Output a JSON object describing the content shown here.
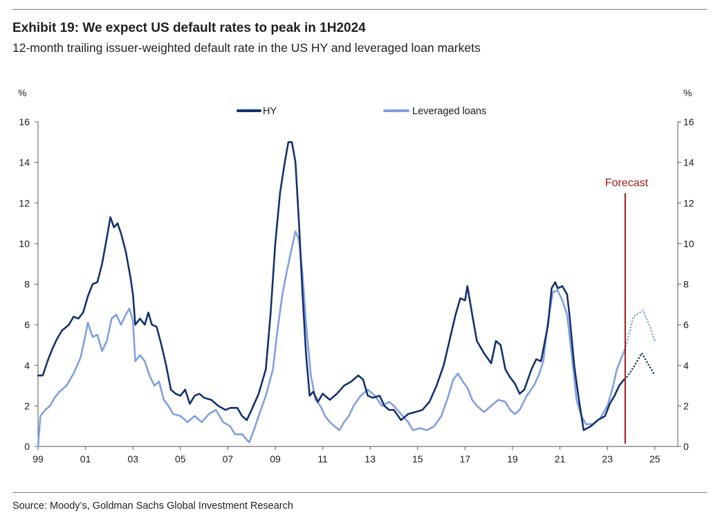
{
  "header": {
    "title": "Exhibit 19: We expect US default rates to peak in 1H2024",
    "subtitle": "12-month trailing issuer-weighted default rate in the US HY and leveraged loan markets"
  },
  "footer": {
    "source": "Source: Moody’s, Goldman Sachs Global Investment Research"
  },
  "chart_data": {
    "type": "line",
    "title": "Exhibit 19: We expect US default rates to peak in 1H2024",
    "subtitle": "12-month trailing issuer-weighted default rate in the US HY and leveraged loan markets",
    "ylabel_left": "%",
    "ylabel_right": "%",
    "ylim": [
      0,
      16
    ],
    "xlim": [
      1999,
      2026
    ],
    "yticks": [
      "0",
      "2",
      "4",
      "6",
      "8",
      "10",
      "12",
      "14",
      "16"
    ],
    "xticks": [
      "99",
      "01",
      "03",
      "05",
      "07",
      "09",
      "11",
      "13",
      "15",
      "17",
      "19",
      "21",
      "23",
      "25"
    ],
    "legend_position": "top-center",
    "annotation": {
      "label": "Forecast",
      "x": 2023.75,
      "color": "#a01818"
    },
    "colors": {
      "hy": "#13306e",
      "loans": "#7f9fe0",
      "forecast": "#a01818"
    },
    "series": [
      {
        "name": "HY",
        "color": "#13306e",
        "points": [
          [
            1999.0,
            3.5
          ],
          [
            1999.2,
            3.5
          ],
          [
            1999.4,
            4.2
          ],
          [
            1999.6,
            4.8
          ],
          [
            1999.8,
            5.3
          ],
          [
            2000.0,
            5.7
          ],
          [
            2000.3,
            6.0
          ],
          [
            2000.5,
            6.4
          ],
          [
            2000.7,
            6.3
          ],
          [
            2000.9,
            6.6
          ],
          [
            2001.1,
            7.4
          ],
          [
            2001.3,
            8.0
          ],
          [
            2001.5,
            8.1
          ],
          [
            2001.7,
            9.0
          ],
          [
            2001.9,
            10.3
          ],
          [
            2002.05,
            11.3
          ],
          [
            2002.2,
            10.8
          ],
          [
            2002.35,
            11.0
          ],
          [
            2002.5,
            10.5
          ],
          [
            2002.7,
            9.6
          ],
          [
            2002.9,
            8.3
          ],
          [
            2003.0,
            7.5
          ],
          [
            2003.1,
            6.0
          ],
          [
            2003.3,
            6.3
          ],
          [
            2003.5,
            6.0
          ],
          [
            2003.65,
            6.6
          ],
          [
            2003.8,
            6.0
          ],
          [
            2004.0,
            5.9
          ],
          [
            2004.2,
            5.0
          ],
          [
            2004.4,
            4.0
          ],
          [
            2004.6,
            2.8
          ],
          [
            2004.8,
            2.6
          ],
          [
            2005.0,
            2.5
          ],
          [
            2005.2,
            2.8
          ],
          [
            2005.4,
            2.1
          ],
          [
            2005.6,
            2.5
          ],
          [
            2005.8,
            2.6
          ],
          [
            2006.0,
            2.4
          ],
          [
            2006.3,
            2.3
          ],
          [
            2006.6,
            2.0
          ],
          [
            2006.9,
            1.8
          ],
          [
            2007.1,
            1.9
          ],
          [
            2007.4,
            1.9
          ],
          [
            2007.6,
            1.5
          ],
          [
            2007.8,
            1.3
          ],
          [
            2008.0,
            1.8
          ],
          [
            2008.3,
            2.6
          ],
          [
            2008.6,
            3.8
          ],
          [
            2008.8,
            6.5
          ],
          [
            2009.0,
            10.0
          ],
          [
            2009.2,
            12.5
          ],
          [
            2009.4,
            14.0
          ],
          [
            2009.55,
            15.0
          ],
          [
            2009.7,
            15.0
          ],
          [
            2009.85,
            14.0
          ],
          [
            2010.0,
            11.0
          ],
          [
            2010.15,
            7.5
          ],
          [
            2010.3,
            4.5
          ],
          [
            2010.45,
            2.5
          ],
          [
            2010.6,
            2.7
          ],
          [
            2010.8,
            2.2
          ],
          [
            2011.0,
            2.6
          ],
          [
            2011.3,
            2.3
          ],
          [
            2011.6,
            2.6
          ],
          [
            2011.9,
            3.0
          ],
          [
            2012.2,
            3.2
          ],
          [
            2012.5,
            3.5
          ],
          [
            2012.7,
            3.3
          ],
          [
            2012.9,
            2.5
          ],
          [
            2013.1,
            2.4
          ],
          [
            2013.4,
            2.5
          ],
          [
            2013.6,
            2.0
          ],
          [
            2013.8,
            1.8
          ],
          [
            2014.0,
            1.8
          ],
          [
            2014.3,
            1.3
          ],
          [
            2014.6,
            1.6
          ],
          [
            2014.9,
            1.7
          ],
          [
            2015.2,
            1.8
          ],
          [
            2015.5,
            2.2
          ],
          [
            2015.8,
            3.0
          ],
          [
            2016.1,
            4.0
          ],
          [
            2016.4,
            5.5
          ],
          [
            2016.6,
            6.5
          ],
          [
            2016.8,
            7.3
          ],
          [
            2017.0,
            7.2
          ],
          [
            2017.1,
            7.9
          ],
          [
            2017.3,
            6.5
          ],
          [
            2017.5,
            5.2
          ],
          [
            2017.8,
            4.6
          ],
          [
            2018.1,
            4.1
          ],
          [
            2018.3,
            5.2
          ],
          [
            2018.5,
            5.0
          ],
          [
            2018.7,
            3.8
          ],
          [
            2018.9,
            3.4
          ],
          [
            2019.1,
            3.1
          ],
          [
            2019.3,
            2.6
          ],
          [
            2019.5,
            2.8
          ],
          [
            2019.8,
            3.8
          ],
          [
            2020.0,
            4.3
          ],
          [
            2020.2,
            4.2
          ],
          [
            2020.5,
            6.0
          ],
          [
            2020.65,
            7.8
          ],
          [
            2020.8,
            8.1
          ],
          [
            2020.9,
            7.8
          ],
          [
            2021.1,
            7.9
          ],
          [
            2021.3,
            7.5
          ],
          [
            2021.4,
            6.5
          ],
          [
            2021.6,
            4.0
          ],
          [
            2021.8,
            2.3
          ],
          [
            2022.0,
            0.8
          ],
          [
            2022.3,
            1.0
          ],
          [
            2022.6,
            1.3
          ],
          [
            2022.9,
            1.5
          ],
          [
            2023.1,
            2.1
          ],
          [
            2023.3,
            2.5
          ],
          [
            2023.5,
            3.0
          ],
          [
            2023.7,
            3.3
          ]
        ]
      },
      {
        "name": "Leveraged loans",
        "color": "#7f9fe0",
        "points": [
          [
            1999.0,
            0.0
          ],
          [
            1999.1,
            1.5
          ],
          [
            1999.3,
            1.8
          ],
          [
            1999.5,
            2.0
          ],
          [
            1999.7,
            2.4
          ],
          [
            1999.9,
            2.7
          ],
          [
            2000.2,
            3.0
          ],
          [
            2000.5,
            3.6
          ],
          [
            2000.8,
            4.4
          ],
          [
            2001.0,
            5.5
          ],
          [
            2001.1,
            6.1
          ],
          [
            2001.3,
            5.4
          ],
          [
            2001.5,
            5.5
          ],
          [
            2001.7,
            4.7
          ],
          [
            2001.9,
            5.2
          ],
          [
            2002.1,
            6.3
          ],
          [
            2002.3,
            6.5
          ],
          [
            2002.5,
            6.0
          ],
          [
            2002.7,
            6.5
          ],
          [
            2002.85,
            6.8
          ],
          [
            2003.0,
            6.2
          ],
          [
            2003.1,
            4.2
          ],
          [
            2003.3,
            4.5
          ],
          [
            2003.5,
            4.2
          ],
          [
            2003.7,
            3.5
          ],
          [
            2003.9,
            3.0
          ],
          [
            2004.1,
            3.2
          ],
          [
            2004.3,
            2.3
          ],
          [
            2004.5,
            2.0
          ],
          [
            2004.7,
            1.6
          ],
          [
            2005.0,
            1.5
          ],
          [
            2005.3,
            1.2
          ],
          [
            2005.6,
            1.5
          ],
          [
            2005.9,
            1.2
          ],
          [
            2006.2,
            1.6
          ],
          [
            2006.5,
            1.8
          ],
          [
            2006.8,
            1.2
          ],
          [
            2007.1,
            1.0
          ],
          [
            2007.3,
            0.6
          ],
          [
            2007.6,
            0.6
          ],
          [
            2007.9,
            0.2
          ],
          [
            2008.1,
            0.8
          ],
          [
            2008.3,
            1.5
          ],
          [
            2008.6,
            2.5
          ],
          [
            2008.9,
            3.8
          ],
          [
            2009.1,
            5.8
          ],
          [
            2009.3,
            7.5
          ],
          [
            2009.5,
            8.7
          ],
          [
            2009.7,
            9.8
          ],
          [
            2009.85,
            10.6
          ],
          [
            2010.0,
            10.2
          ],
          [
            2010.15,
            8.5
          ],
          [
            2010.3,
            6.0
          ],
          [
            2010.5,
            3.5
          ],
          [
            2010.7,
            2.3
          ],
          [
            2010.9,
            2.0
          ],
          [
            2011.1,
            1.5
          ],
          [
            2011.3,
            1.2
          ],
          [
            2011.5,
            1.0
          ],
          [
            2011.7,
            0.8
          ],
          [
            2011.9,
            1.2
          ],
          [
            2012.1,
            1.5
          ],
          [
            2012.3,
            2.0
          ],
          [
            2012.6,
            2.5
          ],
          [
            2012.9,
            2.8
          ],
          [
            2013.2,
            2.5
          ],
          [
            2013.5,
            2.0
          ],
          [
            2013.8,
            2.2
          ],
          [
            2014.0,
            2.0
          ],
          [
            2014.3,
            1.6
          ],
          [
            2014.6,
            1.2
          ],
          [
            2014.8,
            0.8
          ],
          [
            2015.1,
            0.9
          ],
          [
            2015.4,
            0.8
          ],
          [
            2015.7,
            1.0
          ],
          [
            2016.0,
            1.5
          ],
          [
            2016.3,
            2.5
          ],
          [
            2016.5,
            3.3
          ],
          [
            2016.7,
            3.6
          ],
          [
            2016.9,
            3.2
          ],
          [
            2017.1,
            2.9
          ],
          [
            2017.3,
            2.3
          ],
          [
            2017.5,
            2.0
          ],
          [
            2017.8,
            1.7
          ],
          [
            2018.1,
            2.0
          ],
          [
            2018.4,
            2.3
          ],
          [
            2018.7,
            2.2
          ],
          [
            2018.9,
            1.8
          ],
          [
            2019.1,
            1.6
          ],
          [
            2019.3,
            1.8
          ],
          [
            2019.6,
            2.5
          ],
          [
            2019.9,
            3.0
          ],
          [
            2020.1,
            3.5
          ],
          [
            2020.3,
            4.2
          ],
          [
            2020.5,
            6.2
          ],
          [
            2020.7,
            7.6
          ],
          [
            2020.9,
            7.7
          ],
          [
            2021.1,
            7.2
          ],
          [
            2021.3,
            6.5
          ],
          [
            2021.5,
            4.5
          ],
          [
            2021.7,
            2.3
          ],
          [
            2021.9,
            1.5
          ],
          [
            2022.1,
            1.1
          ],
          [
            2022.4,
            1.1
          ],
          [
            2022.7,
            1.4
          ],
          [
            2023.0,
            2.0
          ],
          [
            2023.2,
            2.8
          ],
          [
            2023.4,
            3.8
          ],
          [
            2023.6,
            4.4
          ],
          [
            2023.75,
            4.8
          ]
        ]
      },
      {
        "name": "HY forecast",
        "color": "#13306e",
        "style": "dotted",
        "points": [
          [
            2023.75,
            3.3
          ],
          [
            2024.1,
            3.9
          ],
          [
            2024.45,
            4.6
          ],
          [
            2024.75,
            4.0
          ],
          [
            2025.0,
            3.5
          ]
        ]
      },
      {
        "name": "Leveraged loans forecast",
        "color": "#7f9fe0",
        "style": "dotted",
        "points": [
          [
            2023.75,
            4.8
          ],
          [
            2024.1,
            6.4
          ],
          [
            2024.5,
            6.7
          ],
          [
            2024.8,
            5.9
          ],
          [
            2025.0,
            5.2
          ]
        ]
      }
    ]
  }
}
